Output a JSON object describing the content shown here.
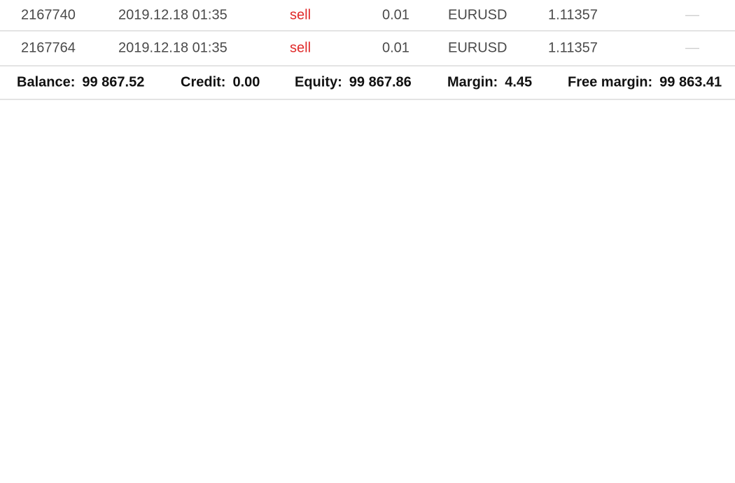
{
  "positions": [
    {
      "ticket": "2167740",
      "time": "2019.12.18 01:35",
      "type": "sell",
      "volume": "0.01",
      "symbol": "EURUSD",
      "price": "1.11357",
      "extra": "—"
    },
    {
      "ticket": "2167764",
      "time": "2019.12.18 01:35",
      "type": "sell",
      "volume": "0.01",
      "symbol": "EURUSD",
      "price": "1.11357",
      "extra": "—"
    }
  ],
  "summary": {
    "balance_label": "Balance:",
    "balance_value": "99 867.52",
    "credit_label": "Credit:",
    "credit_value": "0.00",
    "equity_label": "Equity:",
    "equity_value": "99 867.86",
    "margin_label": "Margin:",
    "margin_value": "4.45",
    "free_margin_label": "Free margin:",
    "free_margin_value": "99 863.41"
  },
  "colors": {
    "sell": "#e02b2b",
    "divider": "#e3e3e3",
    "text": "#4a4a4a"
  }
}
